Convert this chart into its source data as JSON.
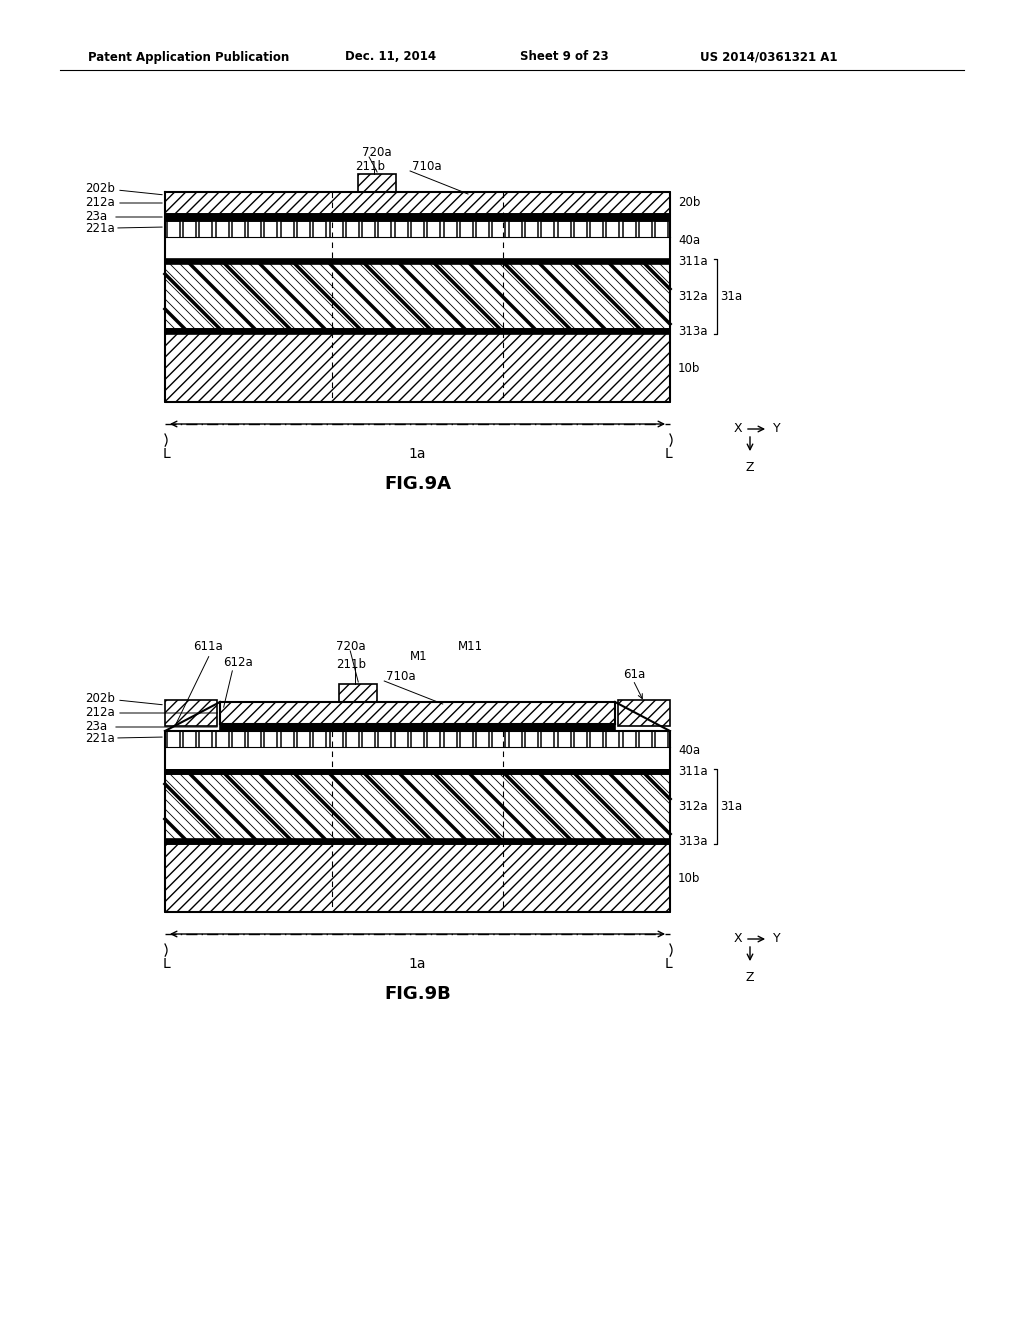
{
  "bg_color": "#ffffff",
  "header_text": "Patent Application Publication",
  "header_date": "Dec. 11, 2014",
  "header_sheet": "Sheet 9 of 23",
  "header_patent": "US 2014/0361321 A1",
  "fig_a_title": "FIG.9A",
  "fig_b_title": "FIG.9B",
  "line_color": "#000000"
}
